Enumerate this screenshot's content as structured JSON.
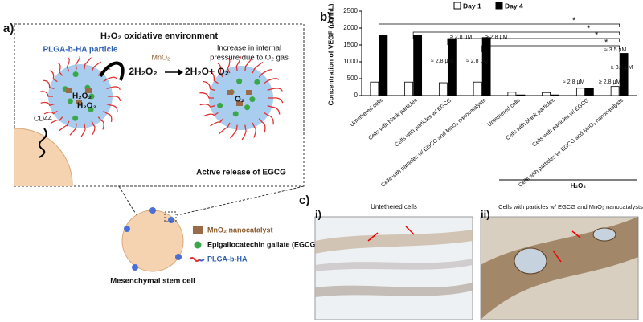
{
  "panel_a": {
    "label": "a)",
    "title": "H₂O₂ oxidative environment",
    "particle_label": "PLGA-b-HA particle",
    "catalyst": "MnO₂",
    "reactant": "2H₂O₂",
    "products": "2H₂O+ O₂",
    "pressure_note": [
      "Increase in internal",
      "pressure due to O₂ gas"
    ],
    "receptor": "CD44",
    "inner_labels": [
      "H₂O₂",
      "H₂O₂",
      "O₂"
    ],
    "release_note": "Active release of EGCG",
    "cell_label": "Mesenchymal stem cell",
    "legend": [
      "MnO₂ nanocatalyst",
      "Epigallocatechin gallate (EGCG)",
      "PLGA-b-HA"
    ]
  },
  "chart_data": {
    "type": "bar",
    "panel_label": "b)",
    "ylabel": "Concentration of VEGF (pg/mL)",
    "categories": [
      "Untethered cells",
      "Cells with blank particles",
      "Cells with particles w/ EGCG",
      "Cells with particles w/ EGCG and MnO₂ nanocatalysts",
      "Untethered cells",
      "Cells with blank particles",
      "Cells with particles w/ EGCG",
      "Cells with particles w/ EGCG and MnO₂ nanocatalysts"
    ],
    "series": [
      {
        "name": "Day 1",
        "color": "#ffffff",
        "values": [
          400,
          400,
          380,
          400,
          100,
          90,
          220,
          270
        ]
      },
      {
        "name": "Day 4",
        "color": "#000000",
        "values": [
          1780,
          1780,
          1680,
          1720,
          20,
          20,
          220,
          1250
        ]
      }
    ],
    "ylim": [
      0,
      2500
    ],
    "yticks": [
      0,
      500,
      1000,
      1500,
      2000,
      2500
    ],
    "legend": "top",
    "group_label": "H₂O₂",
    "annotations": [
      "≈ 2.8 μM",
      "≈ 2.8 μM",
      "≥ 2.8 μM",
      "≥ 2.8 μM",
      "≈ 2.8 μM",
      "≥ 2.8 μM",
      "≈ 3.5 μM",
      "≥ 3.5 μM",
      "*",
      "*",
      "*",
      "*"
    ]
  },
  "panel_c": {
    "label": "c)",
    "images": [
      {
        "label": "i)",
        "title": "Untethered cells"
      },
      {
        "label": "ii)",
        "title": "Cells with particles w/ EGCG and MnO₂ nanocatalysts"
      }
    ]
  }
}
